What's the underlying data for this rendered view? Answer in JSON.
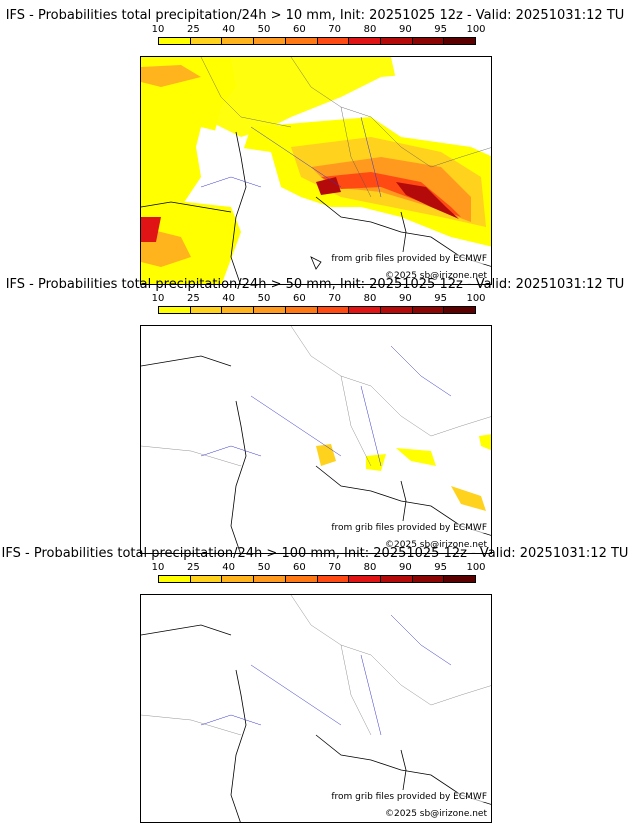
{
  "colorbar": {
    "ticks": [
      "10",
      "25",
      "40",
      "50",
      "60",
      "70",
      "80",
      "90",
      "95",
      "100"
    ],
    "colors": [
      "#ffff00",
      "#ffd21e",
      "#ffb41e",
      "#ff9a1e",
      "#ff7814",
      "#ff4a14",
      "#e01414",
      "#b40a0a",
      "#8c0505",
      "#5a0000"
    ]
  },
  "panels": [
    {
      "title": "IFS - Probabilities total precipitation/24h > 10 mm, Init: 20251025 12z - Valid: 20251031:12 TU",
      "credit_line1": "from grib files provided by ECMWF",
      "credit_line2": "©2025 sb@irizone.net",
      "coverage": "extensive"
    },
    {
      "title": "IFS - Probabilities total precipitation/24h > 50 mm, Init: 20251025 12z - Valid: 20251031:12 TU",
      "credit_line1": "from grib files provided by ECMWF",
      "credit_line2": "©2025 sb@irizone.net",
      "coverage": "sparse"
    },
    {
      "title": "IFS - Probabilities total precipitation/24h > 100 mm, Init: 20251025 12z - Valid: 20251031:12 TU",
      "credit_line1": "from grib files provided by ECMWF",
      "credit_line2": "©2025 sb@irizone.net",
      "coverage": "none"
    }
  ]
}
